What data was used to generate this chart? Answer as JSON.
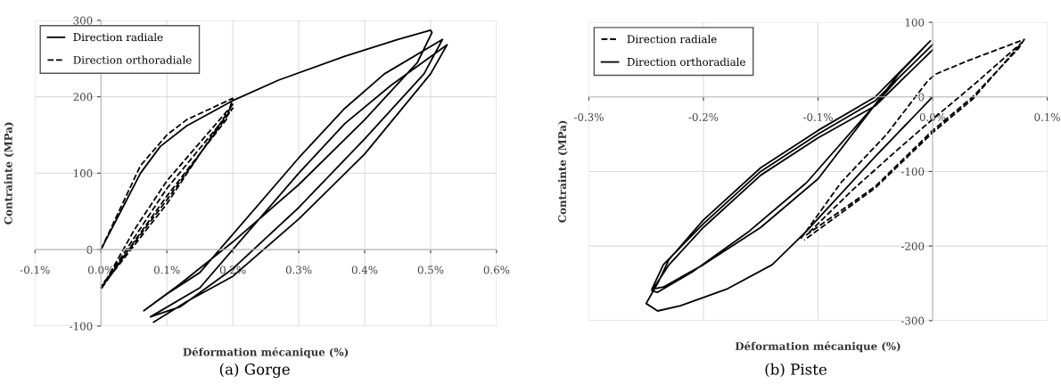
{
  "chart_data": [
    {
      "type": "line",
      "xlabel": "Déformation mécanique (%)",
      "ylabel": "Contrainte (MPa)",
      "annotations": [
        "(a) Gorge"
      ],
      "xlim": [
        -0.1,
        0.6
      ],
      "ylim": [
        -100,
        300
      ],
      "xticks": [
        {
          "value": -0.1,
          "label": "-0.1%"
        },
        {
          "value": 0.0,
          "label": "0.0%"
        },
        {
          "value": 0.1,
          "label": "0.1%"
        },
        {
          "value": 0.2,
          "label": "0.2%"
        },
        {
          "value": 0.3,
          "label": "0.3%"
        },
        {
          "value": 0.4,
          "label": "0.4%"
        },
        {
          "value": 0.5,
          "label": "0.5%"
        },
        {
          "value": 0.6,
          "label": "0.6%"
        }
      ],
      "yticks": [
        -100,
        0,
        100,
        200,
        300
      ],
      "grid": true,
      "legend": "top left",
      "series": [
        {
          "name": "Direction radiale",
          "color": "#000000",
          "line_style": "solid",
          "x": [
            0,
            0.03,
            0.06,
            0.09,
            0.13,
            0.2,
            0.27,
            0.37,
            0.45,
            0.5,
            0.502,
            0.48,
            0.4,
            0.3,
            0.2,
            0.12,
            0.065,
            0.1,
            0.15,
            0.2,
            0.3,
            0.37,
            0.43,
            0.518,
            0.49,
            0.4,
            0.3,
            0.2,
            0.12,
            0.075,
            0.15,
            0.2,
            0.3,
            0.37,
            0.44,
            0.525,
            0.5,
            0.4,
            0.3,
            0.2,
            0.13,
            0.08
          ],
          "values": [
            0,
            50,
            100,
            135,
            162,
            195,
            222,
            253,
            275,
            287,
            284,
            245,
            170,
            85,
            10,
            -45,
            -80,
            -58,
            -30,
            20,
            120,
            185,
            230,
            275,
            230,
            145,
            55,
            -25,
            -75,
            -88,
            -50,
            0,
            100,
            165,
            215,
            268,
            230,
            125,
            40,
            -35,
            -68,
            -95
          ]
        },
        {
          "name": "Direction orthoradiale",
          "color": "#000000",
          "line_style": "dashed",
          "x": [
            0,
            0.03,
            0.06,
            0.1,
            0.13,
            0.2,
            0.19,
            0.1,
            0.05,
            0,
            0.05,
            0.1,
            0.2,
            0.1,
            0,
            0.1,
            0.2,
            0.1,
            0
          ],
          "values": [
            0,
            55,
            110,
            150,
            170,
            198,
            170,
            70,
            10,
            -52,
            25,
            90,
            190,
            60,
            -50,
            80,
            185,
            65,
            -48
          ]
        }
      ]
    },
    {
      "type": "line",
      "xlabel": "Déformation mécanique (%)",
      "ylabel": "Contrainte (MPa)",
      "annotations": [
        "(b) Piste"
      ],
      "xlim": [
        -0.3,
        0.1
      ],
      "ylim": [
        -300,
        100
      ],
      "xticks": [
        {
          "value": -0.3,
          "label": "-0.3%"
        },
        {
          "value": -0.2,
          "label": "-0.2%"
        },
        {
          "value": -0.1,
          "label": "-0.1%"
        },
        {
          "value": 0.0,
          "label": "0.0%"
        },
        {
          "value": 0.1,
          "label": "0.1%"
        }
      ],
      "yticks": [
        -300,
        -200,
        -100,
        0,
        100
      ],
      "grid": true,
      "legend": "top left",
      "series": [
        {
          "name": "Direction radiale",
          "color": "#000000",
          "line_style": "dashed",
          "x": [
            -0.115,
            -0.08,
            -0.04,
            -0.005,
            0.002,
            0.03,
            0.08,
            0.075,
            0.035,
            0,
            -0.05,
            -0.11,
            -0.07,
            -0.03,
            0,
            0.035,
            0.078,
            0.072,
            0.035,
            0,
            -0.05,
            -0.112
          ],
          "values": [
            -190,
            -115,
            -50,
            20,
            30,
            48,
            77,
            65,
            0,
            -45,
            -120,
            -185,
            -125,
            -70,
            -30,
            15,
            73,
            62,
            -3,
            -48,
            -122,
            -192
          ]
        },
        {
          "name": "Direction orthoradiale",
          "color": "#000000",
          "line_style": "solid",
          "x": [
            0,
            -0.05,
            -0.11,
            -0.14,
            -0.18,
            -0.22,
            -0.24,
            -0.25,
            -0.24,
            -0.23,
            -0.2,
            -0.15,
            -0.1,
            -0.05,
            -0.002,
            -0.03,
            -0.1,
            -0.15,
            -0.2,
            -0.235,
            -0.245,
            -0.235,
            -0.2,
            -0.15,
            -0.1,
            -0.05,
            0,
            -0.03,
            -0.11,
            -0.16,
            -0.21,
            -0.24,
            -0.245,
            -0.23,
            -0.2,
            -0.15,
            -0.1,
            -0.05,
            0
          ],
          "values": [
            0,
            -80,
            -180,
            -225,
            -258,
            -280,
            -287,
            -277,
            -250,
            -218,
            -165,
            -95,
            -45,
            0,
            75,
            30,
            -110,
            -175,
            -225,
            -255,
            -258,
            -225,
            -170,
            -100,
            -50,
            -5,
            70,
            25,
            -115,
            -180,
            -235,
            -262,
            -260,
            -225,
            -175,
            -105,
            -55,
            -12,
            63
          ]
        }
      ]
    }
  ]
}
